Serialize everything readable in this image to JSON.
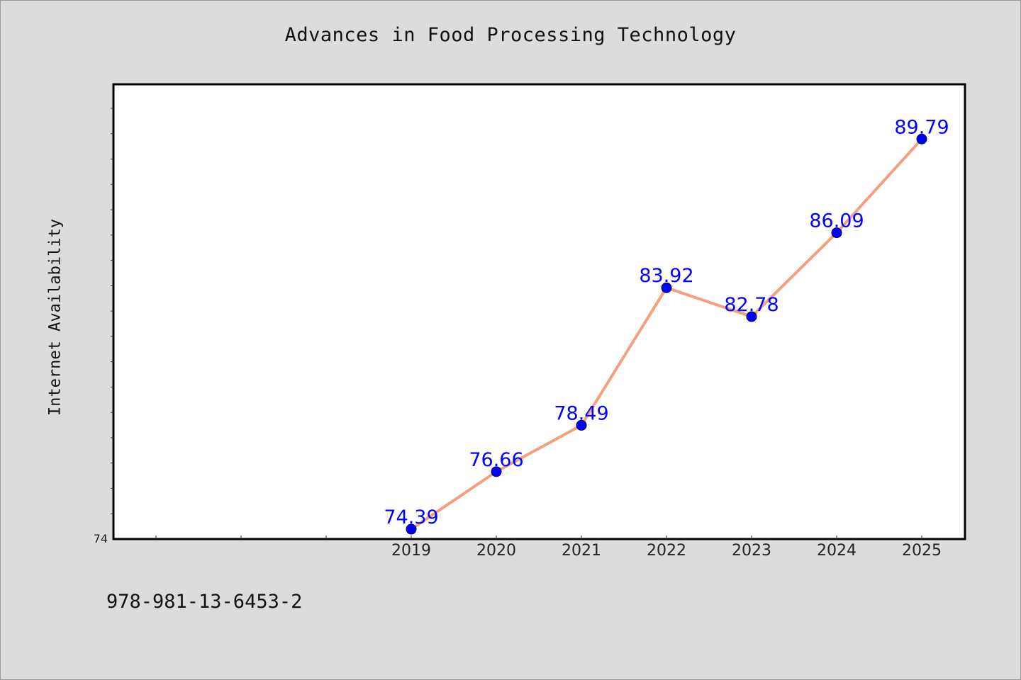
{
  "chart_data": {
    "type": "line",
    "title": "Advances in Food Processing Technology",
    "xlabel": "",
    "ylabel": "Internet Availability",
    "categories": [
      "2019",
      "2020",
      "2021",
      "2022",
      "2023",
      "2024",
      "2025"
    ],
    "series": [
      {
        "values": [
          74.39,
          76.66,
          78.49,
          83.92,
          82.78,
          86.09,
          89.79
        ],
        "line_color": "#f4a080",
        "marker_color": "#0000ff",
        "label_color": "#0000ff"
      }
    ],
    "ylim": [
      74,
      91.95
    ],
    "y_min_label": "74",
    "x_slots": 10,
    "grid": false,
    "legend": "none",
    "plot_background": "#ffffff",
    "page_background": "#dcdcdc"
  },
  "footer": {
    "isbn": "978-981-13-6453-2"
  }
}
